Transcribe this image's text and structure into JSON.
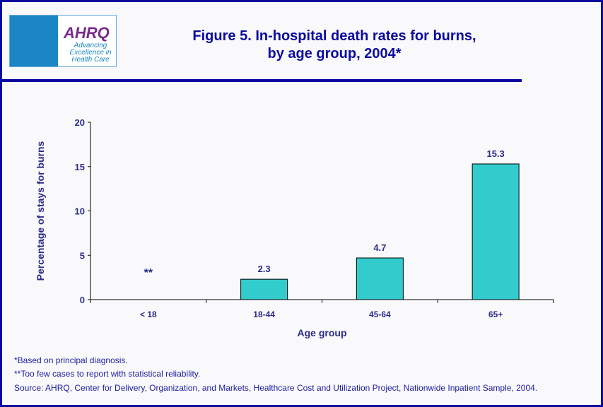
{
  "header": {
    "title_line1": "Figure 5. In-hospital death rates for burns,",
    "title_line2": "by age group, 2004*",
    "logo_text": "AHRQ",
    "logo_tagline": "Advancing Excellence in Health Care"
  },
  "chart_data": {
    "type": "bar",
    "title": "Figure 5. In-hospital death rates for burns, by age group, 2004*",
    "categories": [
      "< 18",
      "18-44",
      "45-64",
      "65+"
    ],
    "values": [
      null,
      2.3,
      4.7,
      15.3
    ],
    "data_labels": [
      "**",
      "2.3",
      "4.7",
      "15.3"
    ],
    "xlabel": "Age group",
    "ylabel": "Percentage of stays for burns",
    "ylim": [
      0,
      20
    ],
    "yticks": [
      0,
      5,
      10,
      15,
      20
    ],
    "grid": false,
    "bar_color": "#33cccc"
  },
  "footnotes": [
    "*Based on principal diagnosis.",
    "**Too few cases to report with statistical reliability.",
    "Source: AHRQ, Center for Delivery, Organization, and Markets, Healthcare Cost and Utilization Project, Nationwide Inpatient Sample, 2004."
  ]
}
